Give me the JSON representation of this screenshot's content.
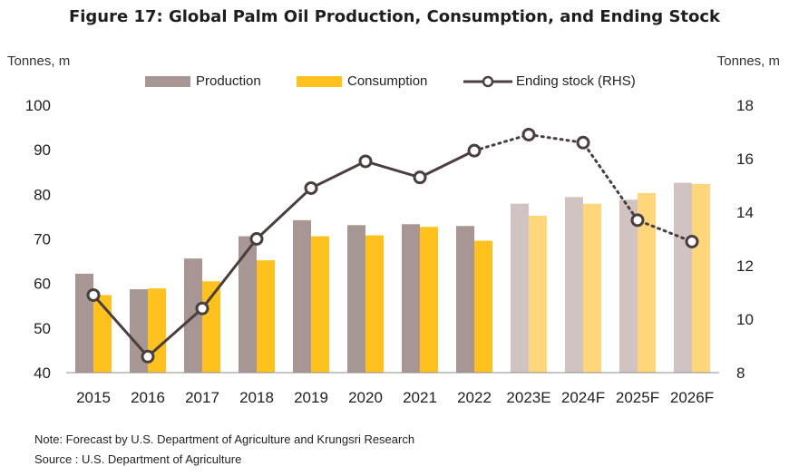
{
  "title": "Figure 17: Global Palm Oil Production,  Consumption,  and Ending Stock",
  "left_axis_unit": "Tonnes, m",
  "right_axis_unit": "Tonnes, m",
  "legend": {
    "production": "Production",
    "consumption": "Consumption",
    "ending_stock": "Ending stock (RHS)"
  },
  "colors": {
    "production": "#a79693",
    "production_forecast": "#d0c3c1",
    "consumption": "#ffc11e",
    "consumption_forecast": "#ffd77a",
    "ending_stock": "#4a3e3e"
  },
  "notes": {
    "note": "Note: Forecast by U.S. Department of Agriculture and Krungsri Research",
    "source": "Source : U.S. Department of Agriculture"
  },
  "chart_data": {
    "type": "bar",
    "title": "Figure 17: Global Palm Oil Production,  Consumption,  and Ending Stock",
    "categories": [
      "2015",
      "2016",
      "2017",
      "2018",
      "2019",
      "2020",
      "2021",
      "2022",
      "2023E",
      "2024F",
      "2025F",
      "2026F"
    ],
    "forecast_from_index": 8,
    "series": [
      {
        "name": "Production",
        "type": "bar",
        "axis": "left",
        "values": [
          62.2,
          58.7,
          65.6,
          70.6,
          74.2,
          73.1,
          73.3,
          72.9,
          77.9,
          79.4,
          78.8,
          82.6
        ]
      },
      {
        "name": "Consumption",
        "type": "bar",
        "axis": "left",
        "values": [
          57.4,
          58.9,
          60.5,
          65.2,
          70.6,
          70.8,
          72.7,
          69.6,
          75.2,
          77.9,
          80.3,
          82.3
        ]
      },
      {
        "name": "Ending stock (RHS)",
        "type": "line",
        "axis": "right",
        "values": [
          10.9,
          8.6,
          10.4,
          13.0,
          14.9,
          15.9,
          15.3,
          16.3,
          16.9,
          16.6,
          13.7,
          12.9
        ]
      }
    ],
    "ylim_left": [
      40,
      100
    ],
    "yticks_left": [
      40,
      50,
      60,
      70,
      80,
      90,
      100
    ],
    "ylim_right": [
      8,
      18
    ],
    "yticks_right": [
      8,
      10,
      12,
      14,
      16,
      18
    ],
    "ylabel_left": "Tonnes, m",
    "ylabel_right": "Tonnes, m",
    "grid": false,
    "legend_position": "top"
  }
}
